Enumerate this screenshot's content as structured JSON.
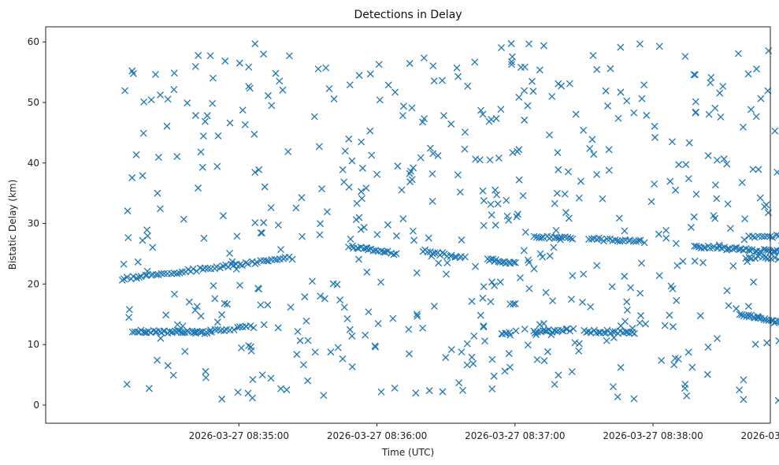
{
  "chart_data": {
    "type": "scatter",
    "title": "Detections in Delay",
    "xlabel": "Time (UTC)",
    "ylabel": "Bistatic Delay (km)",
    "x_unit": "seconds after 2026-03-27 08:34:00 UTC",
    "xlim": [
      -24,
      291
    ],
    "ylim": [
      -3,
      62.5
    ],
    "yticks": [
      0,
      10,
      20,
      30,
      40,
      50,
      60
    ],
    "xticks": [
      {
        "value": 60,
        "label": "2026-03-27 08:35:00"
      },
      {
        "value": 120,
        "label": "2026-03-27 08:36:00"
      },
      {
        "value": 180,
        "label": "2026-03-27 08:37:00"
      },
      {
        "value": 240,
        "label": "2026-03-27 08:38:00"
      },
      {
        "value": 300,
        "label": "2026-03-27 08:39:00"
      }
    ],
    "marker": "x",
    "color": "#1f77b4",
    "tracks": [
      {
        "name": "lower-track-early",
        "x_start": 14,
        "x_end": 48,
        "y_start": 12.2,
        "y_end": 12.0,
        "n": 40
      },
      {
        "name": "lower-track-a",
        "x_start": 48,
        "x_end": 66,
        "y_start": 12.3,
        "y_end": 13.0,
        "n": 14
      },
      {
        "name": "lower-track-mid",
        "x_start": 174,
        "x_end": 178,
        "y_start": 11.6,
        "y_end": 11.8,
        "n": 6
      },
      {
        "name": "lower-track-b",
        "x_start": 188,
        "x_end": 205,
        "y_start": 12.0,
        "y_end": 12.5,
        "n": 18
      },
      {
        "name": "lower-track-c",
        "x_start": 210,
        "x_end": 232,
        "y_start": 12.2,
        "y_end": 12.0,
        "n": 22
      },
      {
        "name": "lower-track-late",
        "x_start": 278,
        "x_end": 306,
        "y_start": 15.0,
        "y_end": 12.8,
        "n": 35
      },
      {
        "name": "rising-track",
        "x_start": 9,
        "x_end": 83,
        "y_start": 20.8,
        "y_end": 24.3,
        "n": 60
      },
      {
        "name": "mid-track-a",
        "x_start": 108,
        "x_end": 128,
        "y_start": 26.2,
        "y_end": 25.0,
        "n": 20
      },
      {
        "name": "mid-track-b",
        "x_start": 140,
        "x_end": 158,
        "y_start": 25.5,
        "y_end": 24.3,
        "n": 18
      },
      {
        "name": "mid-track-c",
        "x_start": 168,
        "x_end": 180,
        "y_start": 24.0,
        "y_end": 23.4,
        "n": 14
      },
      {
        "name": "upper-track-a",
        "x_start": 188,
        "x_end": 205,
        "y_start": 27.8,
        "y_end": 27.5,
        "n": 16
      },
      {
        "name": "upper-track-b",
        "x_start": 212,
        "x_end": 236,
        "y_start": 27.5,
        "y_end": 27.0,
        "n": 22
      },
      {
        "name": "upper-track-c",
        "x_start": 258,
        "x_end": 296,
        "y_start": 26.2,
        "y_end": 25.3,
        "n": 40
      },
      {
        "name": "upper-track-d",
        "x_start": 282,
        "x_end": 306,
        "y_start": 27.8,
        "y_end": 28.0,
        "n": 20
      },
      {
        "name": "lower-mid-track",
        "x_start": 280,
        "x_end": 305,
        "y_start": 24.5,
        "y_end": 24.1,
        "n": 18
      }
    ],
    "scatter_noise": {
      "count": 560,
      "x_range": [
        9,
        309
      ],
      "y_range": [
        0.5,
        59.8
      ],
      "seed": 20260327
    }
  }
}
